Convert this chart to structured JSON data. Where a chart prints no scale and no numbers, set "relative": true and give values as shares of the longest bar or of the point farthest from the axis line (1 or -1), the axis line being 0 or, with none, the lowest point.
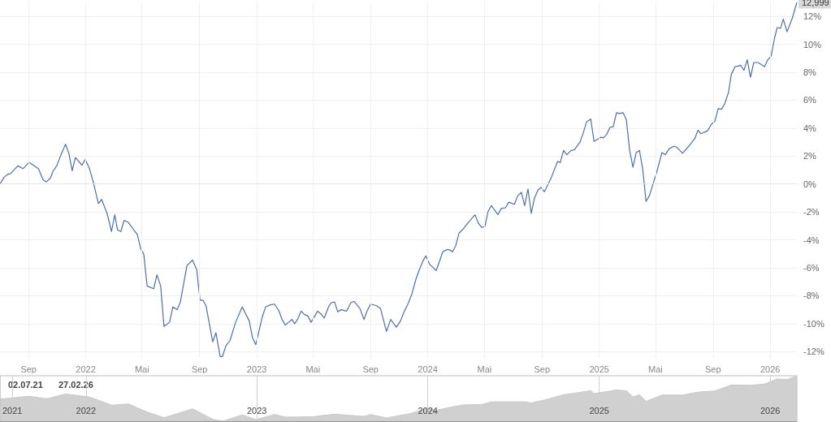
{
  "chart_data": [
    {
      "type": "line",
      "color": "#4e6fa8",
      "grid": true,
      "x": [
        "2021-07-02",
        "2021-07-11",
        "2021-07-19",
        "2021-07-25",
        "2021-08-09",
        "2021-08-20",
        "2021-09-02",
        "2021-09-22",
        "2021-10-02",
        "2021-10-09",
        "2021-10-18",
        "2021-10-23",
        "2021-10-31",
        "2021-11-11",
        "2021-11-19",
        "2021-11-26",
        "2021-12-03",
        "2021-12-10",
        "2021-12-24",
        "2021-12-31",
        "2022-01-09",
        "2022-01-17",
        "2022-01-28",
        "2022-02-04",
        "2022-02-16",
        "2022-02-25",
        "2022-03-04",
        "2022-03-10",
        "2022-03-17",
        "2022-03-24",
        "2022-04-02",
        "2022-04-16",
        "2022-04-21",
        "2022-04-28",
        "2022-05-05",
        "2022-05-12",
        "2022-05-26",
        "2022-06-02",
        "2022-06-10",
        "2022-06-17",
        "2022-06-29",
        "2022-07-06",
        "2022-07-15",
        "2022-07-22",
        "2022-08-05",
        "2022-08-17",
        "2022-08-26",
        "2022-09-02",
        "2022-09-09",
        "2022-09-15",
        "2022-09-29",
        "2022-10-06",
        "2022-10-15",
        "2022-10-20",
        "2022-10-27",
        "2022-11-05",
        "2022-11-17",
        "2022-12-01",
        "2022-12-16",
        "2022-12-23",
        "2022-12-30",
        "2023-01-13",
        "2023-01-20",
        "2023-01-30",
        "2023-02-08",
        "2023-02-17",
        "2023-02-24",
        "2023-03-03",
        "2023-03-10",
        "2023-03-17",
        "2023-03-23",
        "2023-03-29",
        "2023-04-06",
        "2023-04-13",
        "2023-04-20",
        "2023-04-27",
        "2023-05-11",
        "2023-05-18",
        "2023-05-25",
        "2023-06-04",
        "2023-06-09",
        "2023-06-16",
        "2023-06-23",
        "2023-06-30",
        "2023-07-12",
        "2023-07-21",
        "2023-07-28",
        "2023-08-09",
        "2023-08-18",
        "2023-08-25",
        "2023-09-01",
        "2023-09-13",
        "2023-09-22",
        "2023-10-05",
        "2023-10-14",
        "2023-10-26",
        "2023-11-04",
        "2023-11-11",
        "2023-11-19",
        "2023-11-28",
        "2023-12-07",
        "2023-12-14",
        "2023-12-22",
        "2023-12-28",
        "2024-01-05",
        "2024-01-19",
        "2024-01-26",
        "2024-02-02",
        "2024-02-11",
        "2024-02-16",
        "2024-02-23",
        "2024-03-01",
        "2024-03-08",
        "2024-03-16",
        "2024-03-29",
        "2024-04-11",
        "2024-04-18",
        "2024-04-25",
        "2024-05-02",
        "2024-05-09",
        "2024-05-16",
        "2024-05-30",
        "2024-06-06",
        "2024-06-15",
        "2024-06-22",
        "2024-07-04",
        "2024-07-11",
        "2024-07-19",
        "2024-07-26",
        "2024-08-02",
        "2024-08-09",
        "2024-08-16",
        "2024-08-23",
        "2024-08-30",
        "2024-09-06",
        "2024-09-20",
        "2024-10-04",
        "2024-10-10",
        "2024-10-17",
        "2024-10-24",
        "2024-11-02",
        "2024-11-09",
        "2024-11-21",
        "2024-11-28",
        "2024-12-05",
        "2024-12-14",
        "2024-12-21",
        "2025-01-05",
        "2025-01-10",
        "2025-01-17",
        "2025-01-24",
        "2025-01-31",
        "2025-02-07",
        "2025-02-14",
        "2025-02-21",
        "2025-02-28",
        "2025-03-07",
        "2025-03-14",
        "2025-03-21",
        "2025-03-28",
        "2025-04-04",
        "2025-04-11",
        "2025-04-18",
        "2025-05-03",
        "2025-05-15",
        "2025-05-22",
        "2025-05-31",
        "2025-06-10",
        "2025-06-15",
        "2025-06-28",
        "2025-07-11",
        "2025-07-24",
        "2025-07-31",
        "2025-08-06",
        "2025-08-20",
        "2025-08-29",
        "2025-09-05",
        "2025-09-12",
        "2025-09-19",
        "2025-09-26",
        "2025-10-04",
        "2025-10-10",
        "2025-10-18",
        "2025-10-25",
        "2025-10-30",
        "2025-11-06",
        "2025-11-13",
        "2025-11-20",
        "2025-11-27",
        "2025-12-06",
        "2025-12-20",
        "2025-12-27",
        "2026-01-03",
        "2026-01-10",
        "2026-01-16",
        "2026-01-23",
        "2026-01-29",
        "2026-02-06",
        "2026-02-17",
        "2026-02-27"
      ],
      "values": [
        0.0,
        0.5,
        0.7,
        0.75,
        1.3,
        1.1,
        1.55,
        1.1,
        0.3,
        0.15,
        0.45,
        0.9,
        1.3,
        2.25,
        2.85,
        2.2,
        0.95,
        1.9,
        1.35,
        1.75,
        1.1,
        0.15,
        -1.4,
        -1.1,
        -2.15,
        -3.4,
        -2.2,
        -3.3,
        -3.4,
        -2.6,
        -2.75,
        -3.4,
        -3.6,
        -4.6,
        -5.05,
        -7.3,
        -7.5,
        -6.5,
        -7.3,
        -10.2,
        -9.9,
        -8.8,
        -9.0,
        -8.45,
        -5.85,
        -5.45,
        -6.15,
        -8.3,
        -8.35,
        -8.75,
        -11.3,
        -10.65,
        -12.35,
        -12.35,
        -11.6,
        -11.2,
        -9.9,
        -8.8,
        -9.8,
        -11.0,
        -11.5,
        -9.5,
        -8.8,
        -8.65,
        -8.6,
        -9.05,
        -9.7,
        -10.1,
        -9.9,
        -9.7,
        -10.0,
        -9.7,
        -9.1,
        -9.35,
        -9.45,
        -9.9,
        -9.1,
        -9.3,
        -9.6,
        -8.75,
        -8.5,
        -8.45,
        -9.15,
        -9.0,
        -9.1,
        -8.5,
        -8.4,
        -8.9,
        -9.7,
        -9.05,
        -8.6,
        -8.7,
        -8.9,
        -10.55,
        -9.7,
        -10.25,
        -9.8,
        -9.2,
        -8.65,
        -7.9,
        -6.8,
        -6.15,
        -5.5,
        -5.15,
        -5.75,
        -6.2,
        -5.55,
        -4.85,
        -4.7,
        -4.7,
        -4.85,
        -4.4,
        -3.5,
        -3.25,
        -2.7,
        -2.2,
        -2.8,
        -3.1,
        -3.05,
        -1.95,
        -1.55,
        -2.2,
        -1.75,
        -1.7,
        -1.3,
        -1.45,
        -0.85,
        -0.6,
        -1.55,
        -0.35,
        -2.1,
        -1.0,
        -0.45,
        -0.25,
        -0.55,
        0.4,
        1.6,
        1.55,
        2.4,
        2.1,
        2.4,
        2.45,
        3.0,
        3.65,
        4.45,
        4.65,
        3.05,
        3.35,
        3.3,
        3.55,
        4.05,
        4.1,
        5.1,
        5.05,
        5.1,
        4.6,
        2.4,
        1.2,
        2.25,
        2.4,
        1.05,
        -1.25,
        -0.85,
        0.75,
        2.25,
        2.1,
        2.55,
        2.7,
        2.65,
        2.2,
        2.7,
        3.25,
        3.85,
        3.6,
        3.8,
        4.3,
        4.5,
        5.4,
        5.35,
        5.75,
        6.55,
        7.85,
        8.4,
        8.45,
        8.5,
        8.15,
        8.9,
        7.65,
        8.7,
        8.7,
        8.4,
        8.9,
        9.15,
        10.4,
        11.2,
        11.15,
        11.8,
        10.9,
        11.85,
        12.999
      ],
      "xlim": [
        "2021-07-02",
        "2026-02-27"
      ],
      "xticks": [
        {
          "value": "2021-09-01",
          "label": "Sep"
        },
        {
          "value": "2022-01-01",
          "label": "2022"
        },
        {
          "value": "2022-05-01",
          "label": "Mai"
        },
        {
          "value": "2022-09-01",
          "label": "Sep"
        },
        {
          "value": "2023-01-01",
          "label": "2023"
        },
        {
          "value": "2023-05-01",
          "label": "Mai"
        },
        {
          "value": "2023-09-01",
          "label": "Sep"
        },
        {
          "value": "2024-01-01",
          "label": "2024"
        },
        {
          "value": "2024-05-01",
          "label": "Mai"
        },
        {
          "value": "2024-09-01",
          "label": "Sep"
        },
        {
          "value": "2025-01-01",
          "label": "2025"
        },
        {
          "value": "2025-05-01",
          "label": "Mai"
        },
        {
          "value": "2025-09-01",
          "label": "Sep"
        },
        {
          "value": "2026-01-01",
          "label": "2026"
        }
      ],
      "ylim": [
        -12.45,
        13
      ],
      "yticks": [
        {
          "value": -12,
          "label": "-12%"
        },
        {
          "value": -10,
          "label": "-10%"
        },
        {
          "value": -8,
          "label": "-8%"
        },
        {
          "value": -6,
          "label": "-6%"
        },
        {
          "value": -4,
          "label": "-4%"
        },
        {
          "value": -2,
          "label": "-2%"
        },
        {
          "value": 0,
          "label": "0%"
        },
        {
          "value": 2,
          "label": "2%"
        },
        {
          "value": 4,
          "label": "4%"
        },
        {
          "value": 6,
          "label": "6%"
        },
        {
          "value": 8,
          "label": "8%"
        },
        {
          "value": 10,
          "label": "10%"
        },
        {
          "value": 12,
          "label": "12%"
        }
      ],
      "annotations": [
        {
          "text": "12,999",
          "x": "2026-02-27",
          "y": 12.999
        }
      ]
    },
    {
      "type": "area",
      "color": "#c8c8c8",
      "relative": true,
      "grid": "x",
      "x": [
        "2021-07-02",
        "2021-09-02",
        "2021-10-09",
        "2021-11-19",
        "2022-01-09",
        "2022-02-25",
        "2022-04-02",
        "2022-05-12",
        "2022-06-17",
        "2022-08-17",
        "2022-09-29",
        "2022-10-20",
        "2022-12-01",
        "2022-12-30",
        "2023-02-08",
        "2023-03-03",
        "2023-04-27",
        "2023-06-16",
        "2023-08-18",
        "2023-09-01",
        "2023-10-05",
        "2023-11-28",
        "2023-12-28",
        "2024-01-19",
        "2024-03-16",
        "2024-04-25",
        "2024-05-16",
        "2024-07-26",
        "2024-08-09",
        "2024-09-06",
        "2024-10-17",
        "2024-12-14",
        "2024-12-21",
        "2025-02-07",
        "2025-02-28",
        "2025-03-14",
        "2025-03-28",
        "2025-04-11",
        "2025-05-15",
        "2025-06-28",
        "2025-07-31",
        "2025-09-05",
        "2025-10-10",
        "2025-11-20",
        "2025-12-20",
        "2026-01-16",
        "2026-02-06",
        "2026-02-27"
      ],
      "values": [
        0.487,
        0.548,
        0.493,
        0.6,
        0.531,
        0.353,
        0.379,
        0.199,
        0.077,
        0.272,
        0.041,
        0,
        0.14,
        0.034,
        0.148,
        0.089,
        0.097,
        0.154,
        0.105,
        0.148,
        0.071,
        0.176,
        0.284,
        0.243,
        0.359,
        0.365,
        0.426,
        0.426,
        0.404,
        0.465,
        0.582,
        0.671,
        0.607,
        0.688,
        0.669,
        0.535,
        0.582,
        0.438,
        0.576,
        0.574,
        0.639,
        0.665,
        0.797,
        0.789,
        0.819,
        0.929,
        0.917,
        1
      ],
      "xlim": [
        "2021-07-02",
        "2026-02-27"
      ],
      "xticks": [
        {
          "value": "2021-07-28",
          "label": "2021"
        },
        {
          "value": "2022-01-01",
          "label": "2022"
        },
        {
          "value": "2023-01-01",
          "label": "2023"
        },
        {
          "value": "2024-01-01",
          "label": "2024"
        },
        {
          "value": "2025-01-01",
          "label": "2025"
        },
        {
          "value": "2026-01-01",
          "label": "2026"
        }
      ],
      "annotations": [
        "02.07.21",
        "27.02.26"
      ]
    }
  ]
}
